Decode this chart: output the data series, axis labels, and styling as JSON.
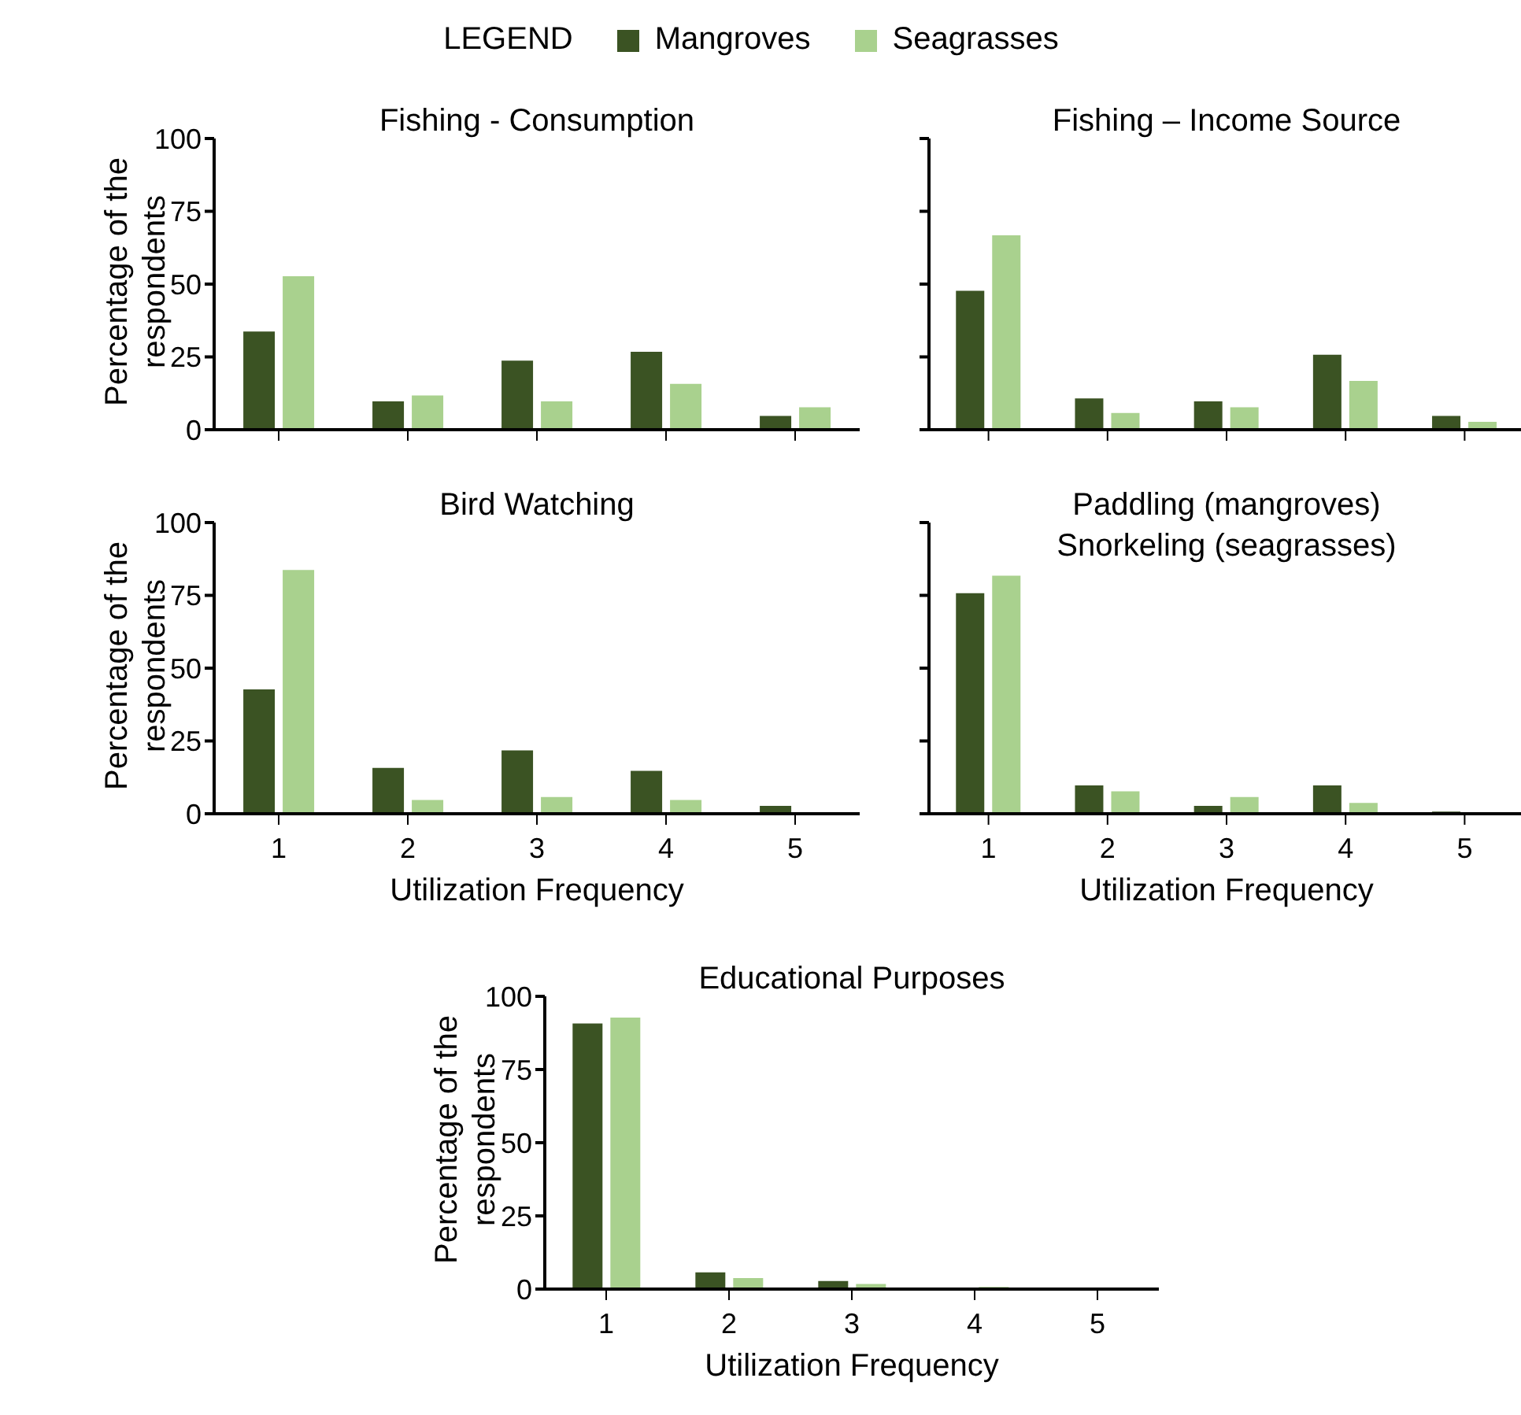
{
  "chart_data": [
    {
      "type": "bar",
      "title": "Fishing - Consumption",
      "ylabel": "Percentage of the respondents",
      "categories": [
        "1",
        "2",
        "3",
        "4",
        "5"
      ],
      "legend": "top",
      "legend_title": "LEGEND",
      "tick_labels": "y",
      "ylim": [
        0,
        100
      ],
      "yticks": [
        0,
        25,
        50,
        75,
        100
      ],
      "series": [
        {
          "name": "Mangroves",
          "color": "#3b5323",
          "values": [
            34,
            10,
            24,
            27,
            5
          ]
        },
        {
          "name": "Seagrasses",
          "color": "#a9d18e",
          "values": [
            53,
            12,
            10,
            16,
            8
          ]
        }
      ]
    },
    {
      "type": "bar",
      "title": "Fishing – Income Source",
      "categories": [
        "1",
        "2",
        "3",
        "4",
        "5"
      ],
      "tick_labels": false,
      "ylim": [
        0,
        100
      ],
      "yticks": [
        0,
        25,
        50,
        75,
        100
      ],
      "series": [
        {
          "color": "#3b5323",
          "values": [
            48,
            11,
            10,
            26,
            5
          ]
        },
        {
          "color": "#a9d18e",
          "values": [
            67,
            6,
            8,
            17,
            3
          ]
        }
      ]
    },
    {
      "type": "bar",
      "title": "Bird Watching",
      "xlabel": "Utilization Frequency",
      "ylabel": "Percentage of the respondents",
      "categories": [
        "1",
        "2",
        "3",
        "4",
        "5"
      ],
      "ylim": [
        0,
        100
      ],
      "yticks": [
        0,
        25,
        50,
        75,
        100
      ],
      "series": [
        {
          "color": "#3b5323",
          "values": [
            43,
            16,
            22,
            15,
            3
          ]
        },
        {
          "color": "#a9d18e",
          "values": [
            84,
            5,
            6,
            5,
            0
          ]
        }
      ]
    },
    {
      "type": "bar",
      "title": "Paddling (mangroves)\nSnorkeling (seagrasses)",
      "xlabel": "Utilization Frequency",
      "categories": [
        "1",
        "2",
        "3",
        "4",
        "5"
      ],
      "tick_labels": "x",
      "ylim": [
        0,
        100
      ],
      "yticks": [
        0,
        25,
        50,
        75,
        100
      ],
      "series": [
        {
          "color": "#3b5323",
          "values": [
            76,
            10,
            3,
            10,
            1
          ]
        },
        {
          "color": "#a9d18e",
          "values": [
            82,
            8,
            6,
            4,
            0
          ]
        }
      ]
    },
    {
      "type": "bar",
      "title": "Educational Purposes",
      "xlabel": "Utilization Frequency",
      "ylabel": "Percentage of the respondents",
      "categories": [
        "1",
        "2",
        "3",
        "4",
        "5"
      ],
      "ylim": [
        0,
        100
      ],
      "yticks": [
        0,
        25,
        50,
        75,
        100
      ],
      "series": [
        {
          "color": "#3b5323",
          "values": [
            91,
            6,
            3,
            0,
            0
          ]
        },
        {
          "color": "#a9d18e",
          "values": [
            93,
            4,
            2,
            1,
            0
          ]
        }
      ]
    }
  ]
}
